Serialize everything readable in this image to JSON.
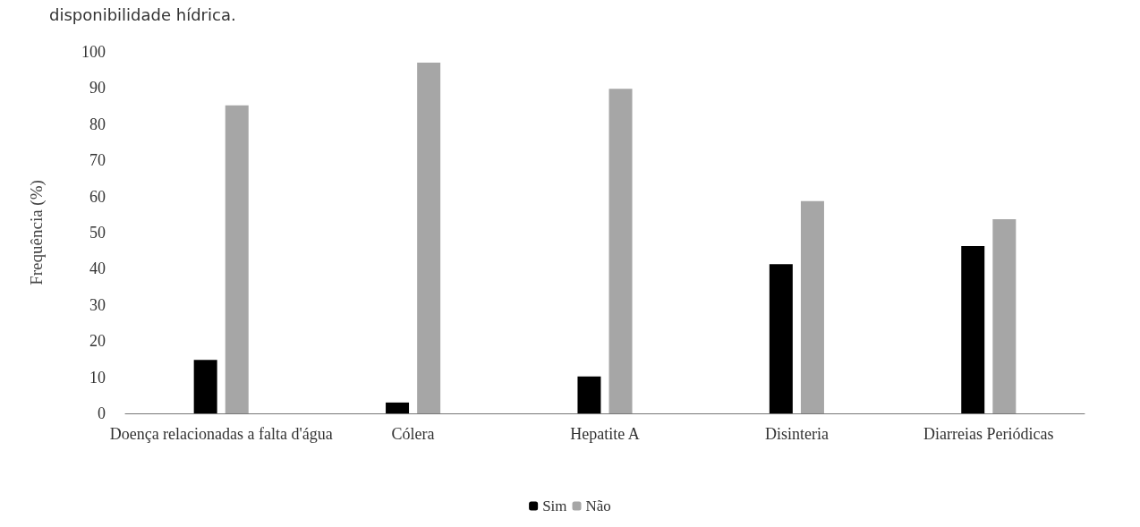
{
  "chart_data": {
    "type": "bar",
    "title": "disponibilidade hídrica.",
    "ylabel": "Frequência (%)",
    "categories": [
      "Doença relacionadas a falta d'água",
      "Cólera",
      "Hepatite A",
      "Disinteria",
      "Diarreias Periódicas"
    ],
    "series": [
      {
        "name": "Sim",
        "color": "#000000",
        "values": [
          14.8,
          3,
          10.2,
          41.3,
          46.3
        ]
      },
      {
        "name": "Não",
        "color": "#a6a6a6",
        "values": [
          85.2,
          97,
          89.8,
          58.7,
          53.7
        ]
      }
    ],
    "ylim": [
      0,
      100
    ],
    "yticks": [
      0,
      10,
      20,
      30,
      40,
      50,
      60,
      70,
      80,
      90,
      100
    ],
    "grid": false,
    "legend": "bottom"
  }
}
